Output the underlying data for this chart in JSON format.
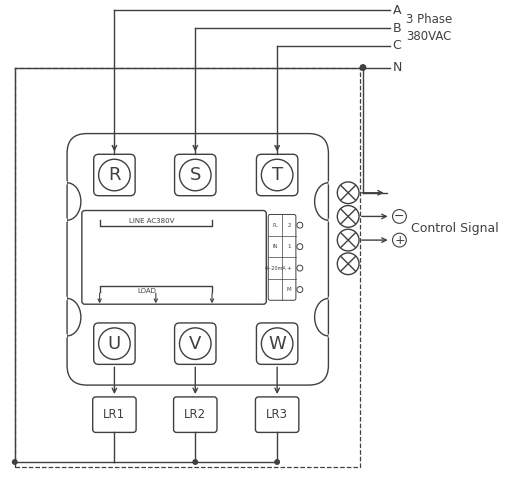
{
  "bg_color": "#ffffff",
  "line_color": "#404040",
  "dashed_line_color": "#404040",
  "input_terminals": [
    "R",
    "S",
    "T"
  ],
  "output_terminals": [
    "U",
    "V",
    "W"
  ],
  "load_boxes": [
    "LR1",
    "LR2",
    "LR3"
  ],
  "control_signal": "Control Signal",
  "line_label": "LINE AC380V",
  "load_label": "LOAD",
  "panel_rows": [
    [
      "PL",
      "2"
    ],
    [
      "IN",
      "1"
    ],
    [
      "4~20mA",
      "+"
    ],
    [
      "",
      "M"
    ]
  ]
}
